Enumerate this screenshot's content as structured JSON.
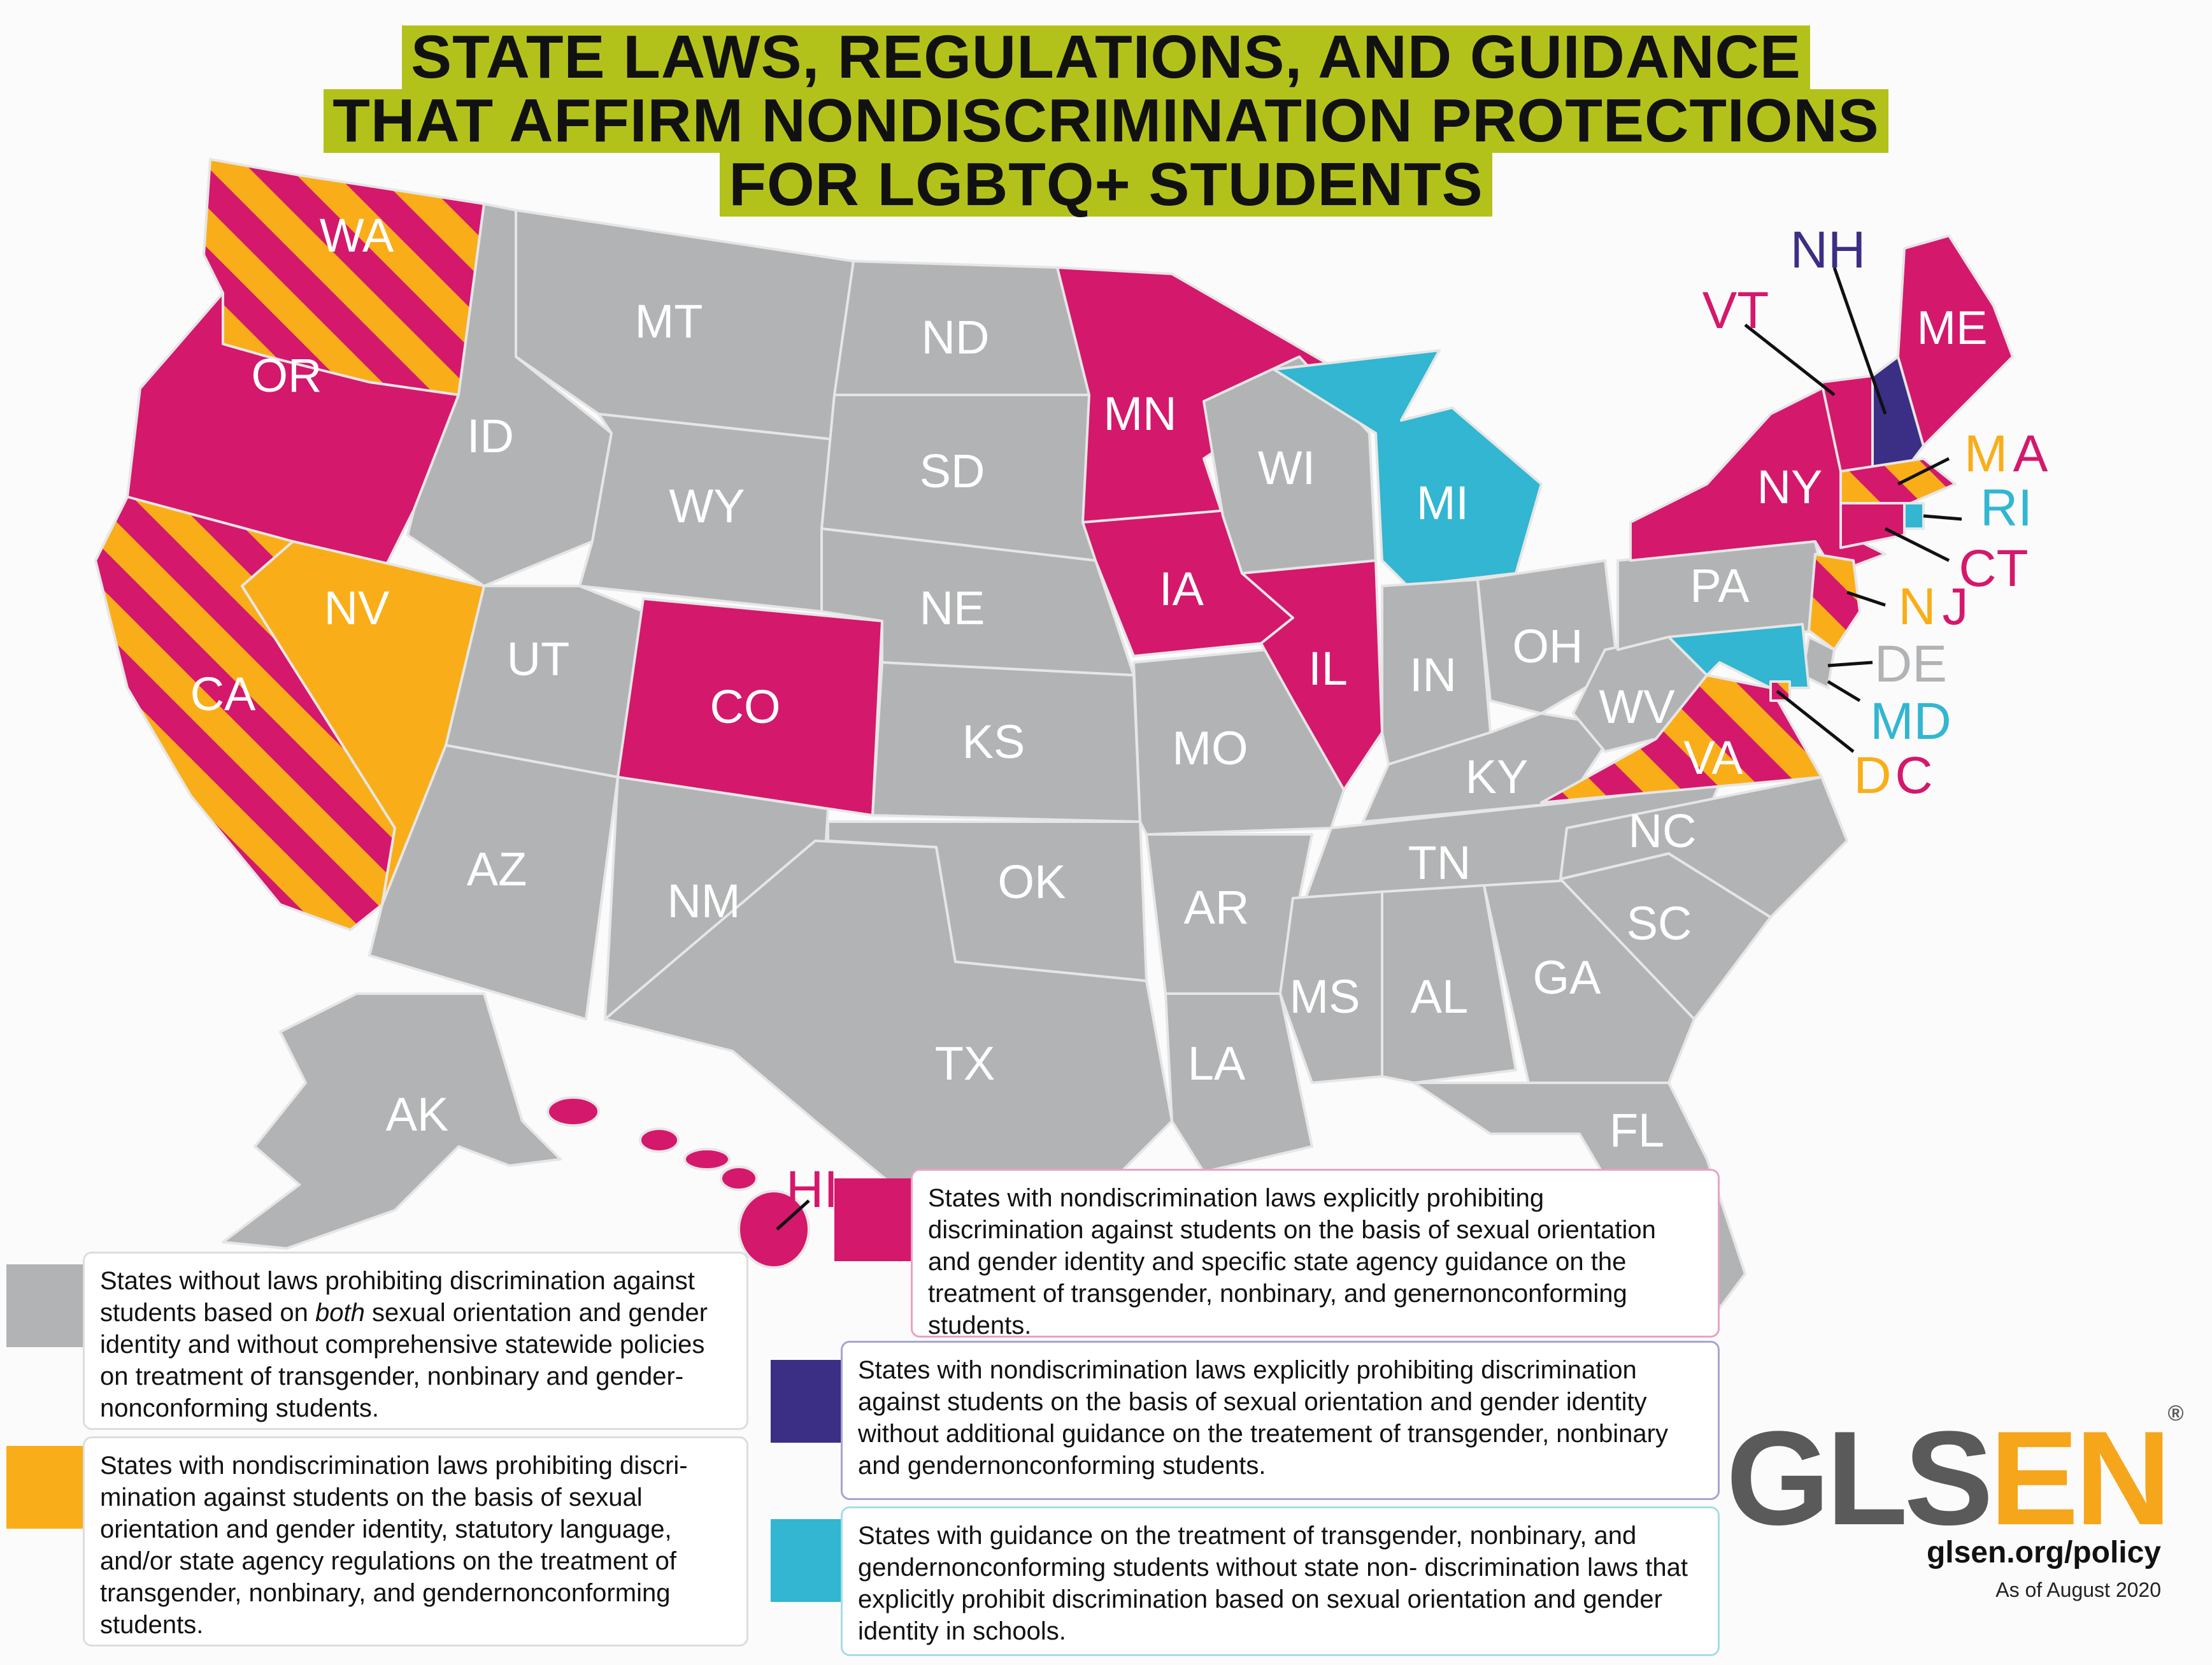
{
  "title": {
    "line1": "STATE LAWS, REGULATIONS, AND GUIDANCE",
    "line2": "THAT AFFIRM NONDISCRIMINATION PROTECTIONS",
    "line3": "FOR LGBTQ+ STUDENTS"
  },
  "colors": {
    "gray": "#b2b3b5",
    "orange": "#f9ae19",
    "magenta": "#d4186c",
    "navy": "#3a2f84",
    "cyan": "#32b6d1",
    "title_highlight": "#b3c21a"
  },
  "states": {
    "WA": "WA",
    "OR": "OR",
    "CA": "CA",
    "NV": "NV",
    "ID": "ID",
    "MT": "MT",
    "WY": "WY",
    "UT": "UT",
    "AZ": "AZ",
    "CO": "CO",
    "NM": "NM",
    "ND": "ND",
    "SD": "SD",
    "NE": "NE",
    "KS": "KS",
    "OK": "OK",
    "TX": "TX",
    "MN": "MN",
    "IA": "IA",
    "MO": "MO",
    "AR": "AR",
    "LA": "LA",
    "WI": "WI",
    "IL": "IL",
    "MI": "MI",
    "IN": "IN",
    "OH": "OH",
    "KY": "KY",
    "TN": "TN",
    "MS": "MS",
    "AL": "AL",
    "GA": "GA",
    "FL": "FL",
    "SC": "SC",
    "NC": "NC",
    "VA": "VA",
    "WV": "WV",
    "PA": "PA",
    "NY": "NY",
    "VT": "VT",
    "NH": "NH",
    "ME": "ME",
    "MA": "MA",
    "RI": "RI",
    "CT": "CT",
    "NJ": "NJ",
    "DE": "DE",
    "MD": "MD",
    "DC": "DC",
    "AK": "AK",
    "HI": "HI"
  },
  "legend": {
    "gray_pre": "States without laws prohibiting discrimination against students based on ",
    "gray_em": "both",
    "gray_post": " sexual orientation and gender identity and without comprehensive statewide policies on treatment of transgender, nonbinary and gender-nonconforming students.",
    "orange": "States with nondiscrimination laws prohibiting discri-mination against students on the basis of sexual orientation and gender identity, statutory language, and/or state agency regulations on the treatment of transgender, nonbinary, and gendernonconforming students.",
    "magenta": "States with nondiscrimination laws explicitly prohibiting discrimination against students on the basis of sexual orientation and gender identity and specific state agency guidance on the treatment of transgender, nonbinary, and genernonconforming students.",
    "navy": "States with nondiscrimination laws explicitly prohibiting discrimination against students on the basis of sexual orientation and gender identity without additional guidance on the treatement of transgender, nonbinary and gendernonconforming students.",
    "cyan": "States with guidance on the treatment of transgender, nonbinary, and gendernonconforming students without state non- discrimination laws that explicitly prohibit discrimination based on sexual orientation and gender identity in schools."
  },
  "logo": {
    "gls": "GLS",
    "en": "EN",
    "reg": "®"
  },
  "url": "glsen.org/policy",
  "as_of": "As of August 2020"
}
